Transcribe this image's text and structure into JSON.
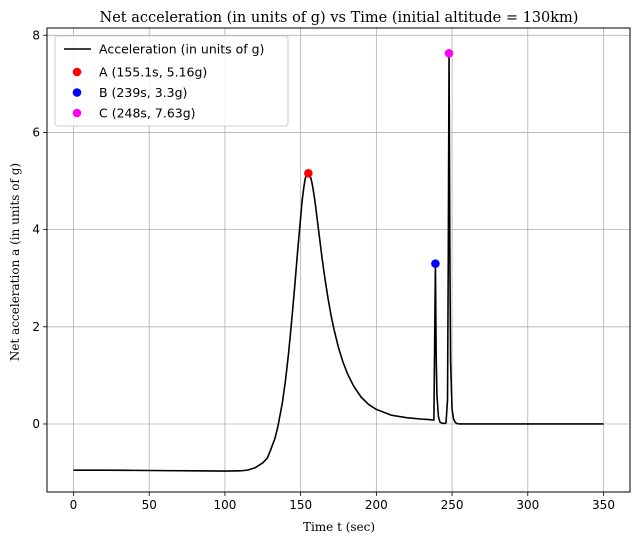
{
  "chart_data": {
    "type": "line",
    "title": "Net acceleration (in units of g) vs Time (initial altitude = 130km)",
    "xlabel": "Time t (sec)",
    "ylabel": "Net acceleration a (in units of g)",
    "xlim": [
      -17.5,
      367.5
    ],
    "ylim": [
      -1.4,
      8.15
    ],
    "xticks": [
      0,
      50,
      100,
      150,
      200,
      250,
      300,
      350
    ],
    "yticks": [
      0,
      2,
      4,
      6,
      8
    ],
    "grid": true,
    "legend_position": "upper-left",
    "series": [
      {
        "name": "Acceleration (in units of g)",
        "color": "#000000",
        "x": [
          0,
          20,
          40,
          60,
          80,
          100,
          110,
          115,
          120,
          125,
          128,
          130,
          133,
          135,
          138,
          140,
          142,
          144,
          146,
          148,
          150,
          151,
          152,
          153,
          154,
          155,
          156,
          157,
          158,
          159,
          160,
          162,
          164,
          166,
          168,
          170,
          172,
          175,
          178,
          181,
          185,
          190,
          195,
          200,
          210,
          220,
          230,
          235,
          238,
          239,
          239.5,
          240,
          241,
          242,
          243,
          245,
          246,
          247,
          247.5,
          248,
          248.5,
          249,
          250,
          251,
          252,
          253,
          255,
          260,
          280,
          300,
          320,
          350
        ],
        "y": [
          -0.95,
          -0.95,
          -0.955,
          -0.96,
          -0.965,
          -0.97,
          -0.965,
          -0.95,
          -0.9,
          -0.8,
          -0.7,
          -0.55,
          -0.3,
          -0.05,
          0.45,
          0.9,
          1.45,
          2.1,
          2.8,
          3.55,
          4.25,
          4.6,
          4.85,
          5.05,
          5.13,
          5.16,
          5.13,
          5.03,
          4.88,
          4.68,
          4.45,
          3.95,
          3.45,
          3.0,
          2.6,
          2.25,
          1.95,
          1.57,
          1.27,
          1.03,
          0.78,
          0.55,
          0.4,
          0.3,
          0.18,
          0.13,
          0.1,
          0.09,
          0.08,
          3.3,
          1.4,
          0.6,
          0.15,
          0.04,
          0.02,
          0.01,
          0.02,
          0.5,
          3.5,
          7.63,
          3.8,
          1.3,
          0.3,
          0.1,
          0.04,
          0.01,
          0.0,
          0.0,
          0.0,
          0.0,
          0.0,
          0.0
        ]
      }
    ],
    "points": [
      {
        "label": "A (155.1s, 5.16g)",
        "x": 155.1,
        "y": 5.16,
        "color": "#ff0000"
      },
      {
        "label": "B (239s, 3.3g)",
        "x": 239,
        "y": 3.3,
        "color": "#0000ff"
      },
      {
        "label": "C (248s, 7.63g)",
        "x": 248,
        "y": 7.63,
        "color": "#ff00ff"
      }
    ]
  }
}
